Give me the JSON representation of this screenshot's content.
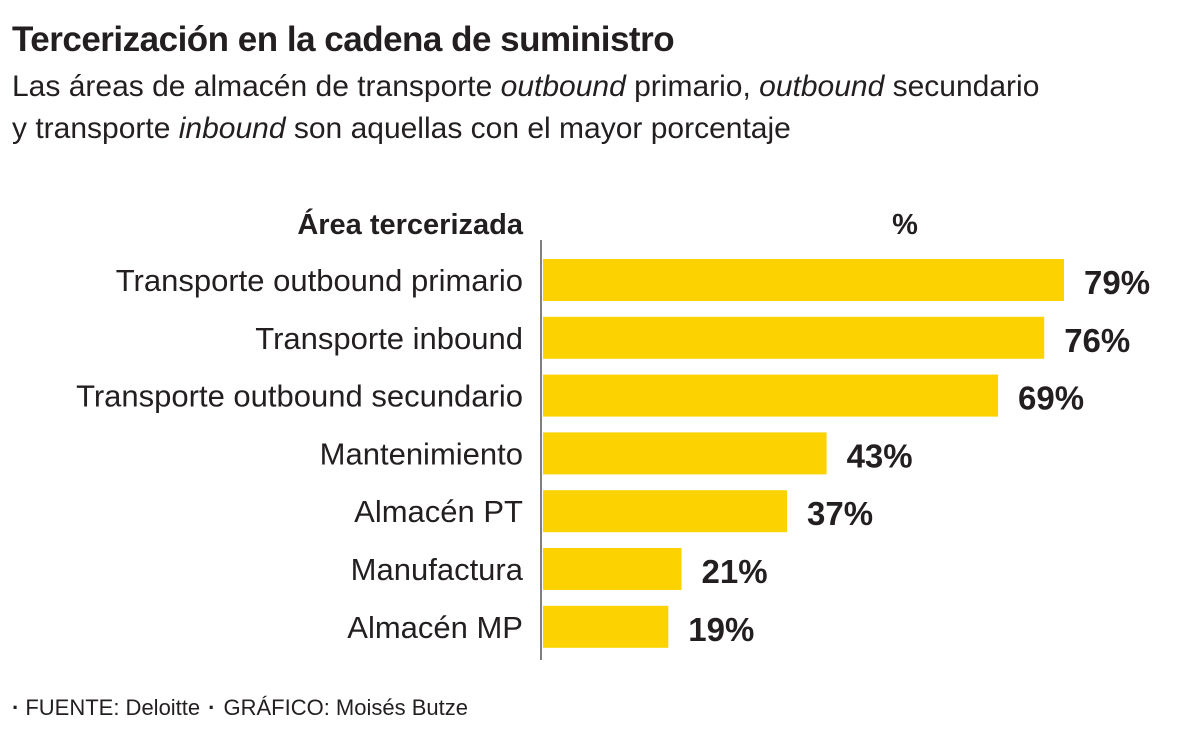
{
  "header": {
    "title": "Tercerización en la cadena de suministro",
    "subtitle_parts": [
      {
        "text": "Las áreas de almacén de transporte ",
        "italic": false
      },
      {
        "text": "outbound",
        "italic": true
      },
      {
        "text": " primario, ",
        "italic": false
      },
      {
        "text": "outbound",
        "italic": true
      },
      {
        "text": " secundario",
        "italic": false
      },
      {
        "text": "\n",
        "italic": false
      },
      {
        "text": "y transporte ",
        "italic": false
      },
      {
        "text": "inbound",
        "italic": true
      },
      {
        "text": " son aquellas con el mayor porcentaje",
        "italic": false
      }
    ]
  },
  "chart_data": {
    "type": "bar",
    "orientation": "horizontal",
    "category_header": "Área tercerizada",
    "value_header": "%",
    "categories": [
      "Transporte outbound primario",
      "Transporte inbound",
      "Transporte outbound secundario",
      "Mantenimiento",
      "Almacén PT",
      "Manufactura",
      "Almacén MP"
    ],
    "values": [
      79,
      76,
      69,
      43,
      37,
      21,
      19
    ],
    "value_labels": [
      "79%",
      "76%",
      "69%",
      "43%",
      "37%",
      "21%",
      "19%"
    ],
    "xlim": [
      0,
      79
    ],
    "bar_color": "#fcd200",
    "axis_color": "#555555",
    "grid": false,
    "legend": "none"
  },
  "footer": {
    "source_label": "FUENTE: Deloitte",
    "credit_label": "GRÁFICO: Moisés Butze"
  }
}
